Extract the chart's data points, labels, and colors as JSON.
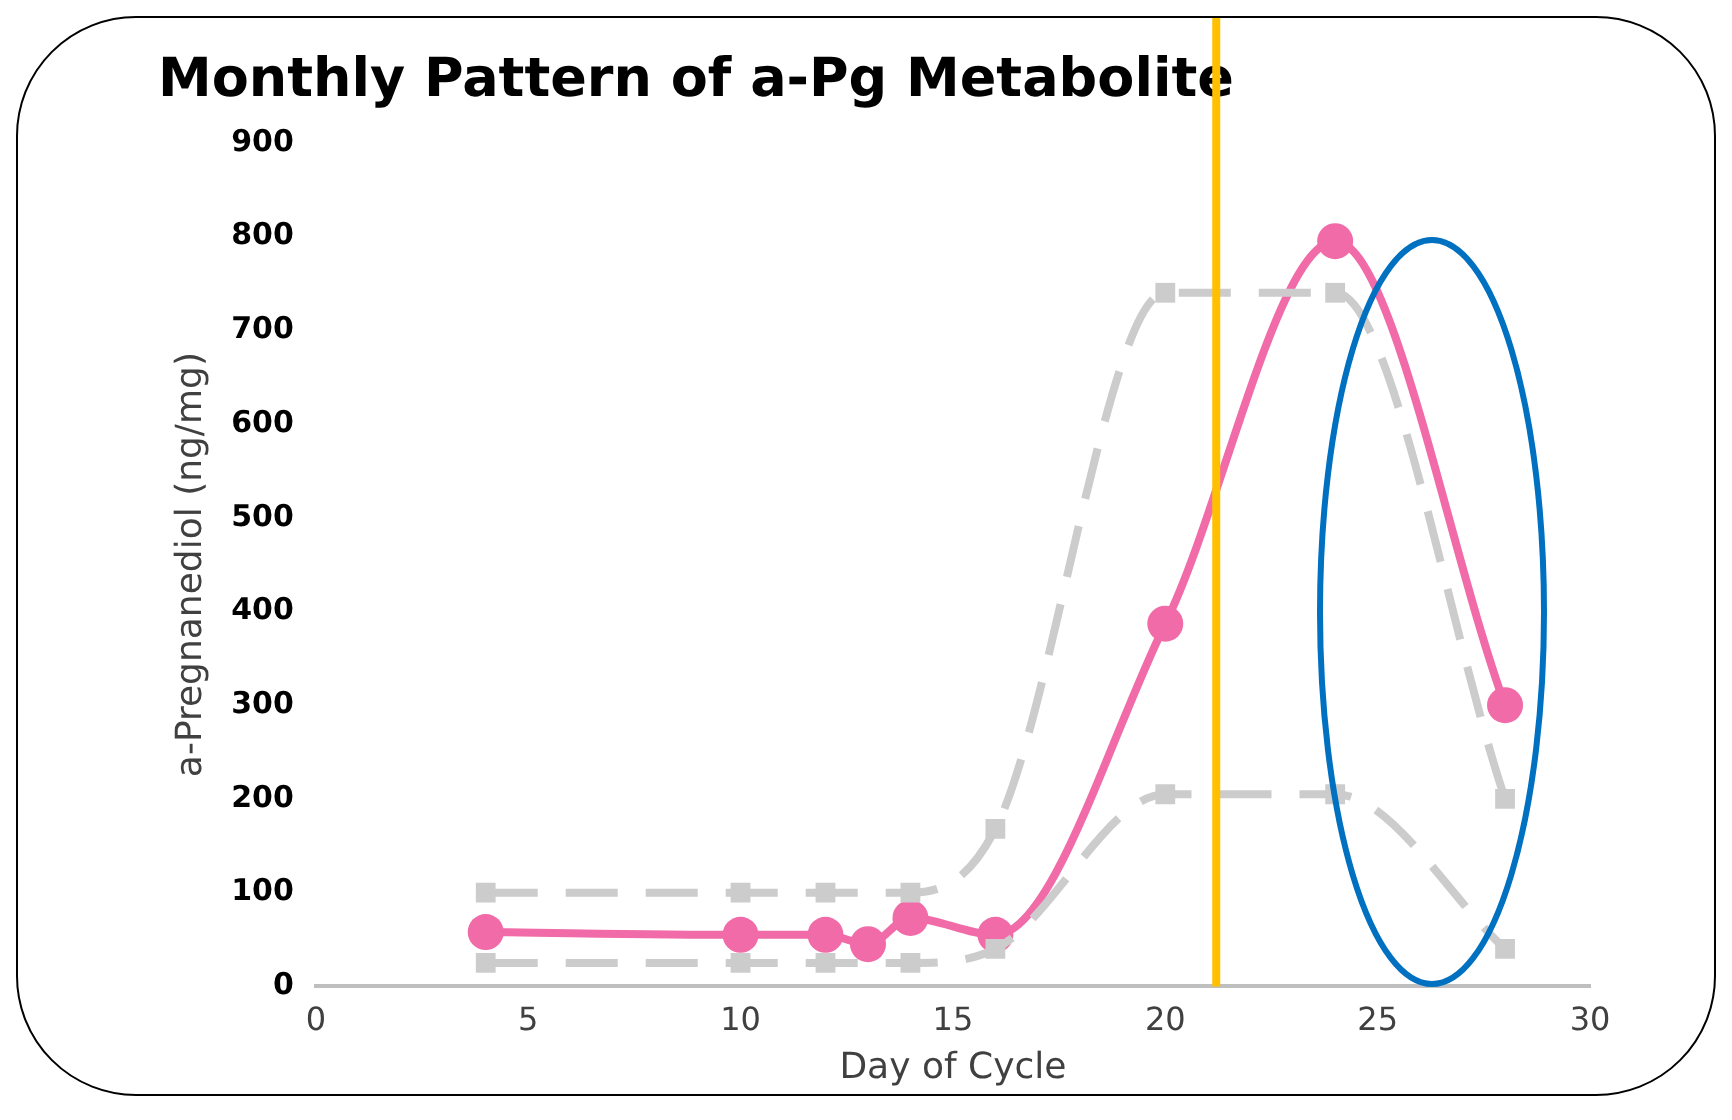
{
  "chart_data": {
    "type": "line",
    "title": "Monthly Pattern of a-Pg Metabolite",
    "xlabel": "Day of Cycle",
    "ylabel": "a-Pregnanediol (ng/mg)",
    "xlim": [
      0,
      30
    ],
    "xticks": [
      0,
      5,
      10,
      15,
      20,
      25,
      30
    ],
    "ylim": [
      0,
      900
    ],
    "yticks": [
      0,
      100,
      200,
      300,
      400,
      500,
      600,
      700,
      800,
      900
    ],
    "grid": false,
    "legend": false,
    "series": [
      {
        "color": "#cccccc",
        "x": [
          4,
          10,
          12,
          14,
          16,
          20,
          24,
          28
        ],
        "values": [
          100,
          100,
          100,
          100,
          168,
          740,
          740,
          200
        ],
        "marker": "square",
        "line_style": "dashed"
      },
      {
        "color": "#cccccc",
        "x": [
          4,
          10,
          12,
          14,
          16,
          20,
          24,
          28
        ],
        "values": [
          25,
          25,
          25,
          25,
          40,
          205,
          205,
          40
        ],
        "marker": "square",
        "line_style": "dashed"
      },
      {
        "color": "#f06ba8",
        "x": [
          4,
          10,
          12,
          13,
          14,
          16,
          20,
          24,
          28
        ],
        "values": [
          58,
          55,
          55,
          45,
          73,
          55,
          387,
          795,
          300
        ],
        "marker": "circle",
        "line_style": "solid"
      }
    ],
    "ref_lines": [
      {
        "axis": "x",
        "value": 21.2,
        "color": "#ffc000",
        "line_style": "solid"
      }
    ]
  }
}
